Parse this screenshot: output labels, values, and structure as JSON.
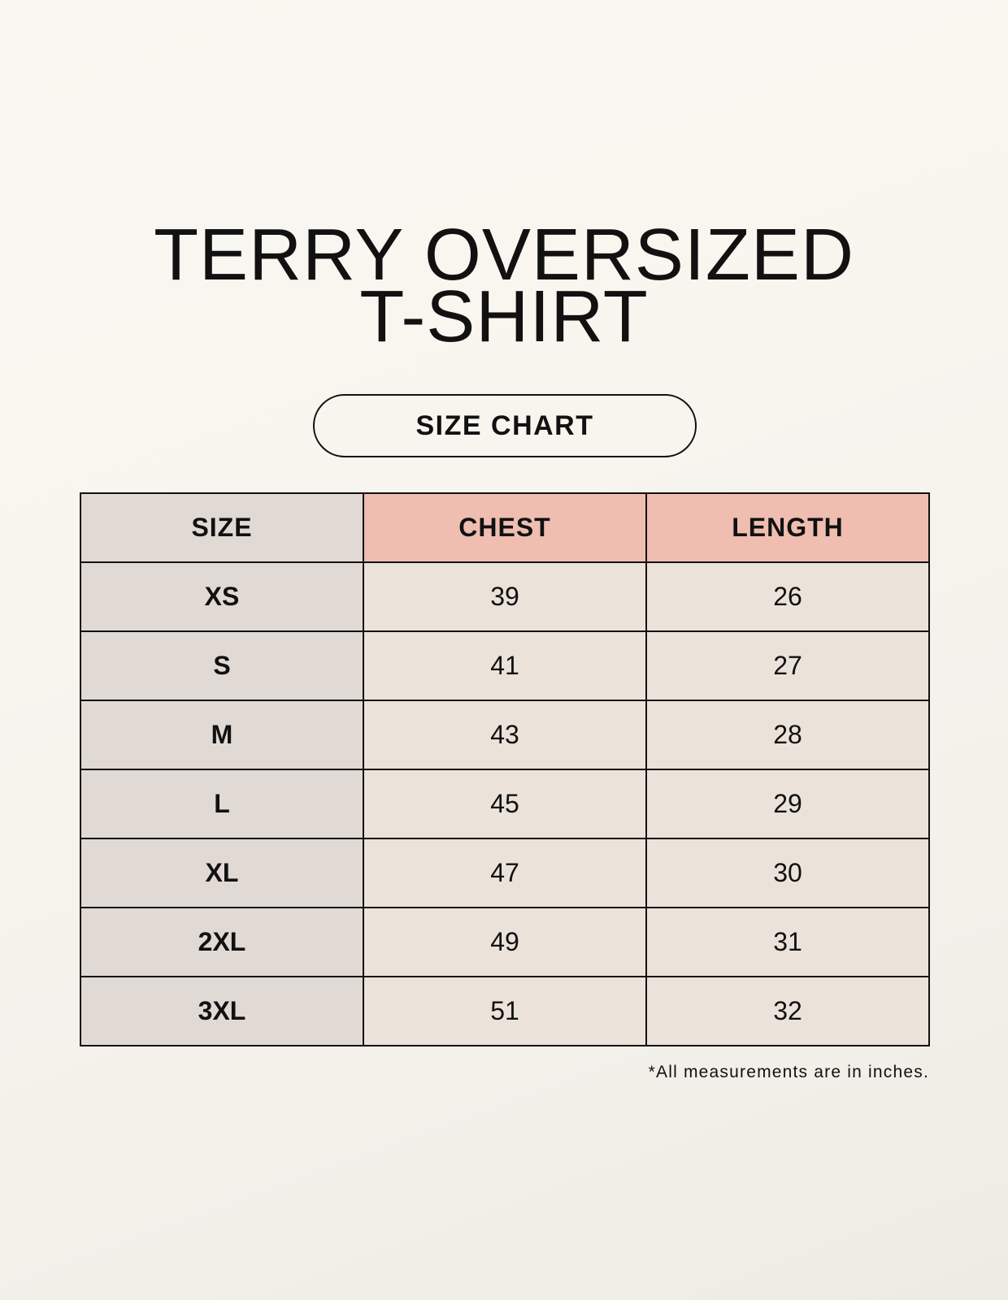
{
  "title_line1": "TERRY OVERSIZED",
  "title_line2": "T-SHIRT",
  "badge": "SIZE CHART",
  "table": {
    "headers": [
      "SIZE",
      "CHEST",
      "LENGTH"
    ],
    "rows": [
      [
        "XS",
        "39",
        "26"
      ],
      [
        "S",
        "41",
        "27"
      ],
      [
        "M",
        "43",
        "28"
      ],
      [
        "L",
        "45",
        "29"
      ],
      [
        "XL",
        "47",
        "30"
      ],
      [
        "2XL",
        "49",
        "31"
      ],
      [
        "3XL",
        "51",
        "32"
      ]
    ]
  },
  "footnote": "*All measurements are in inches.",
  "colors": {
    "background": "#f8f6f0",
    "header_accent": "#efbeb1",
    "size_column": "#e1d9d4",
    "cells": "#ebe3d9"
  }
}
